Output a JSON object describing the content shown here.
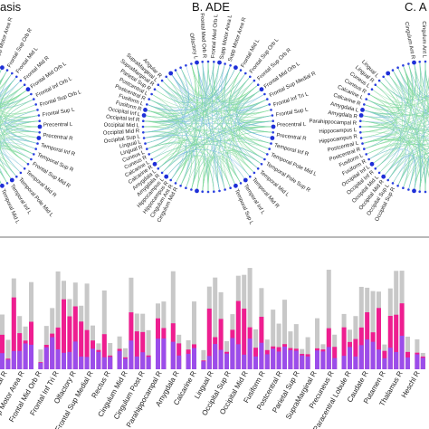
{
  "panels": [
    {
      "title": "asis",
      "labels": [
        "Frontal Sup Orb R",
        "Frontal Mid L",
        "Frontal Mid R",
        "Frontal Mid Orb L",
        "Frontal Inf Orb L",
        "Frontal Sup Orb L",
        "Frontal Sup L",
        "Precentral L",
        "Precentral R",
        "Temporal Inf R",
        "Temporal Sup R",
        "Frontal Sup Mid R",
        "Temporal Mid R",
        "Temporal Pole Mid L",
        "Temporal Inf L",
        "Temporal Mid L"
      ],
      "top_labels": [
        "Olfactory L",
        "Supp Motor Area L",
        "Supp Motor Area R"
      ]
    },
    {
      "title": "B. ADE",
      "labels": [
        "Frontal Mid L",
        "Frontal Sup Orb L",
        "Frontal Sup Orb R",
        "Frontal Mid Orb L",
        "Frontal Sup Medial R",
        "Frontal Inf Tri L",
        "Frontal Sup L",
        "Precentral L",
        "Precentral R",
        "Temporal Inf R",
        "Temporal Pole Mid L",
        "Temporal Pole Sup R",
        "Temporal Mid L",
        "Temporal Mid R",
        "Temporal Inf L",
        "Temporal Sup L"
      ],
      "left_labels": [
        "Cingulum Mid R",
        "Cingulum Ant R",
        "Hippocampus R",
        "Hippocampus L",
        "Amygdala R",
        "Amygdala L",
        "Calcarine R",
        "Calcarine L",
        "Cuneus R",
        "Cuneus L",
        "Lingual R",
        "Lingual L",
        "Occipital Sup L",
        "Occipital Mid R",
        "Occipital Mid L",
        "Occipital Inf R",
        "Occipital Inf L",
        "Fusiform R",
        "Fusiform L",
        "Postcentral R",
        "Postcentral L",
        "Parietal Sup R",
        "SupraMarginal R",
        "SupraMarginal L",
        "Angular R"
      ],
      "top_labels": [
        "Olfactory L",
        "Frontal Med Orb R",
        "Frontal Med Orb L",
        "Supp Motor Area L",
        "Supp Motor Area R"
      ]
    },
    {
      "title": "C. A",
      "left_labels": [
        "Occipital Sup R",
        "Occipital Sup L",
        "Occipital Mid R",
        "Occipital Mid L",
        "Occipital Inf R",
        "Occipital Inf L",
        "Fusiform R",
        "Fusiform L",
        "Postcentral R",
        "Postcentral L",
        "Hippocampus R",
        "Hippocampus L",
        "Parahippocampal R",
        "Amygdala R",
        "Amygdala L",
        "Calcarine R",
        "Calcarine L",
        "Cuneus R",
        "Cuneus L",
        "Lingual R",
        "Lingual L"
      ],
      "top_labels": [
        "Cingulum Ant R",
        "Cingulum Ant L",
        "Insula R",
        "Olfactory L"
      ]
    }
  ],
  "bars": {
    "labels": [
      "Occipital R",
      "Supp Motor Area R",
      "Frontal Mid Orb R",
      "Frontal Inf Tri R",
      "Olfactory R",
      "Frontal Sup Medial R",
      "Rectus R",
      "Cingulum Mid R",
      "Cingulum Post R",
      "Parahippocampal R",
      "Amygdala R",
      "Calcarine R",
      "Lingual R",
      "Occipital Sup R",
      "Occipital Mid R",
      "Fusiform R",
      "Postcentral R",
      "Parietal Sup R",
      "SupraMarginal R",
      "Precuneus R",
      "Paracentral Lobule R",
      "Caudate R",
      "Putamen R",
      "Thalamus R",
      "Heschl R"
    ],
    "colors": {
      "total": "#c8c8c8",
      "mid": "#ee1e90",
      "base": "#9b4dea"
    }
  }
}
